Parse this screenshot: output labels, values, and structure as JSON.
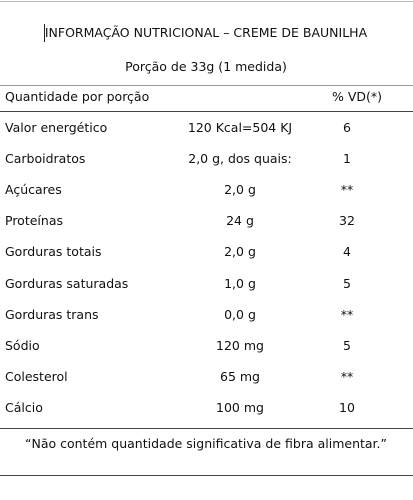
{
  "header": {
    "title": "INFORMAÇÃO NUTRICIONAL – CREME DE BAUNILHA",
    "portion": "Porção de 33g (1 medida)"
  },
  "table": {
    "columns": [
      "Quantidade por porção",
      "% VD(*)"
    ],
    "rows": [
      [
        "Valor energético",
        "120 Kcal=504 KJ",
        "6"
      ],
      [
        "Carboidratos",
        "2,0 g, dos quais:",
        "1"
      ],
      [
        "Açúcares",
        "2,0 g",
        "**"
      ],
      [
        "Proteínas",
        "24 g",
        "32"
      ],
      [
        "Gorduras totais",
        "2,0 g",
        "4"
      ],
      [
        "Gorduras saturadas",
        "1,0 g",
        "5"
      ],
      [
        "Gorduras trans",
        "0,0 g",
        "**"
      ],
      [
        "Sódio",
        "120 mg",
        "5"
      ],
      [
        "Colesterol",
        "65 mg",
        "**"
      ],
      [
        "Cálcio",
        "100 mg",
        "10"
      ]
    ]
  },
  "footnote": "“Não contém quantidade significativa de fibra alimentar.”"
}
